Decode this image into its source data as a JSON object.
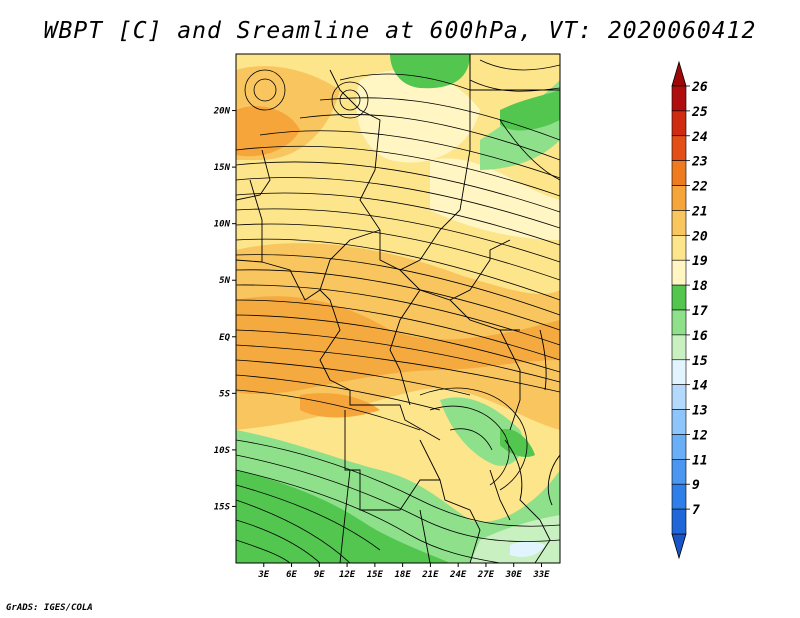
{
  "title": "WBPT [C] and Sreamline at 600hPa, VT: 2020060412",
  "credit": "GrADS: IGES/COLA",
  "map": {
    "lon_range": [
      0,
      35
    ],
    "lat_range": [
      -20,
      25
    ],
    "lat_ticks": [
      "20N",
      "15N",
      "10N",
      "5N",
      "EQ",
      "5S",
      "10S",
      "15S"
    ],
    "lat_values": [
      20,
      15,
      10,
      5,
      0,
      -5,
      -10,
      -15
    ],
    "lon_ticks": [
      "3E",
      "6E",
      "9E",
      "12E",
      "15E",
      "18E",
      "21E",
      "24E",
      "27E",
      "30E",
      "33E"
    ],
    "lon_values": [
      3,
      6,
      9,
      12,
      15,
      18,
      21,
      24,
      27,
      30,
      33
    ]
  },
  "colorbar": {
    "labels": [
      "7",
      "9",
      "11",
      "12",
      "13",
      "14",
      "15",
      "16",
      "17",
      "18",
      "19",
      "20",
      "21",
      "22",
      "23",
      "24",
      "25",
      "26"
    ],
    "colors": [
      "#1f66d9",
      "#2f7fe8",
      "#4a96f0",
      "#6aaef5",
      "#8ec5fa",
      "#b3dafc",
      "#e2f5ff",
      "#c8f0c0",
      "#8fe08a",
      "#52c64e",
      "#fff6c4",
      "#fde58c",
      "#f9c55e",
      "#f5a53a",
      "#ef7b20",
      "#e34f16",
      "#cf2a12",
      "#b00e0e"
    ],
    "under_color": "#1a55c7",
    "over_color": "#9e0808"
  }
}
